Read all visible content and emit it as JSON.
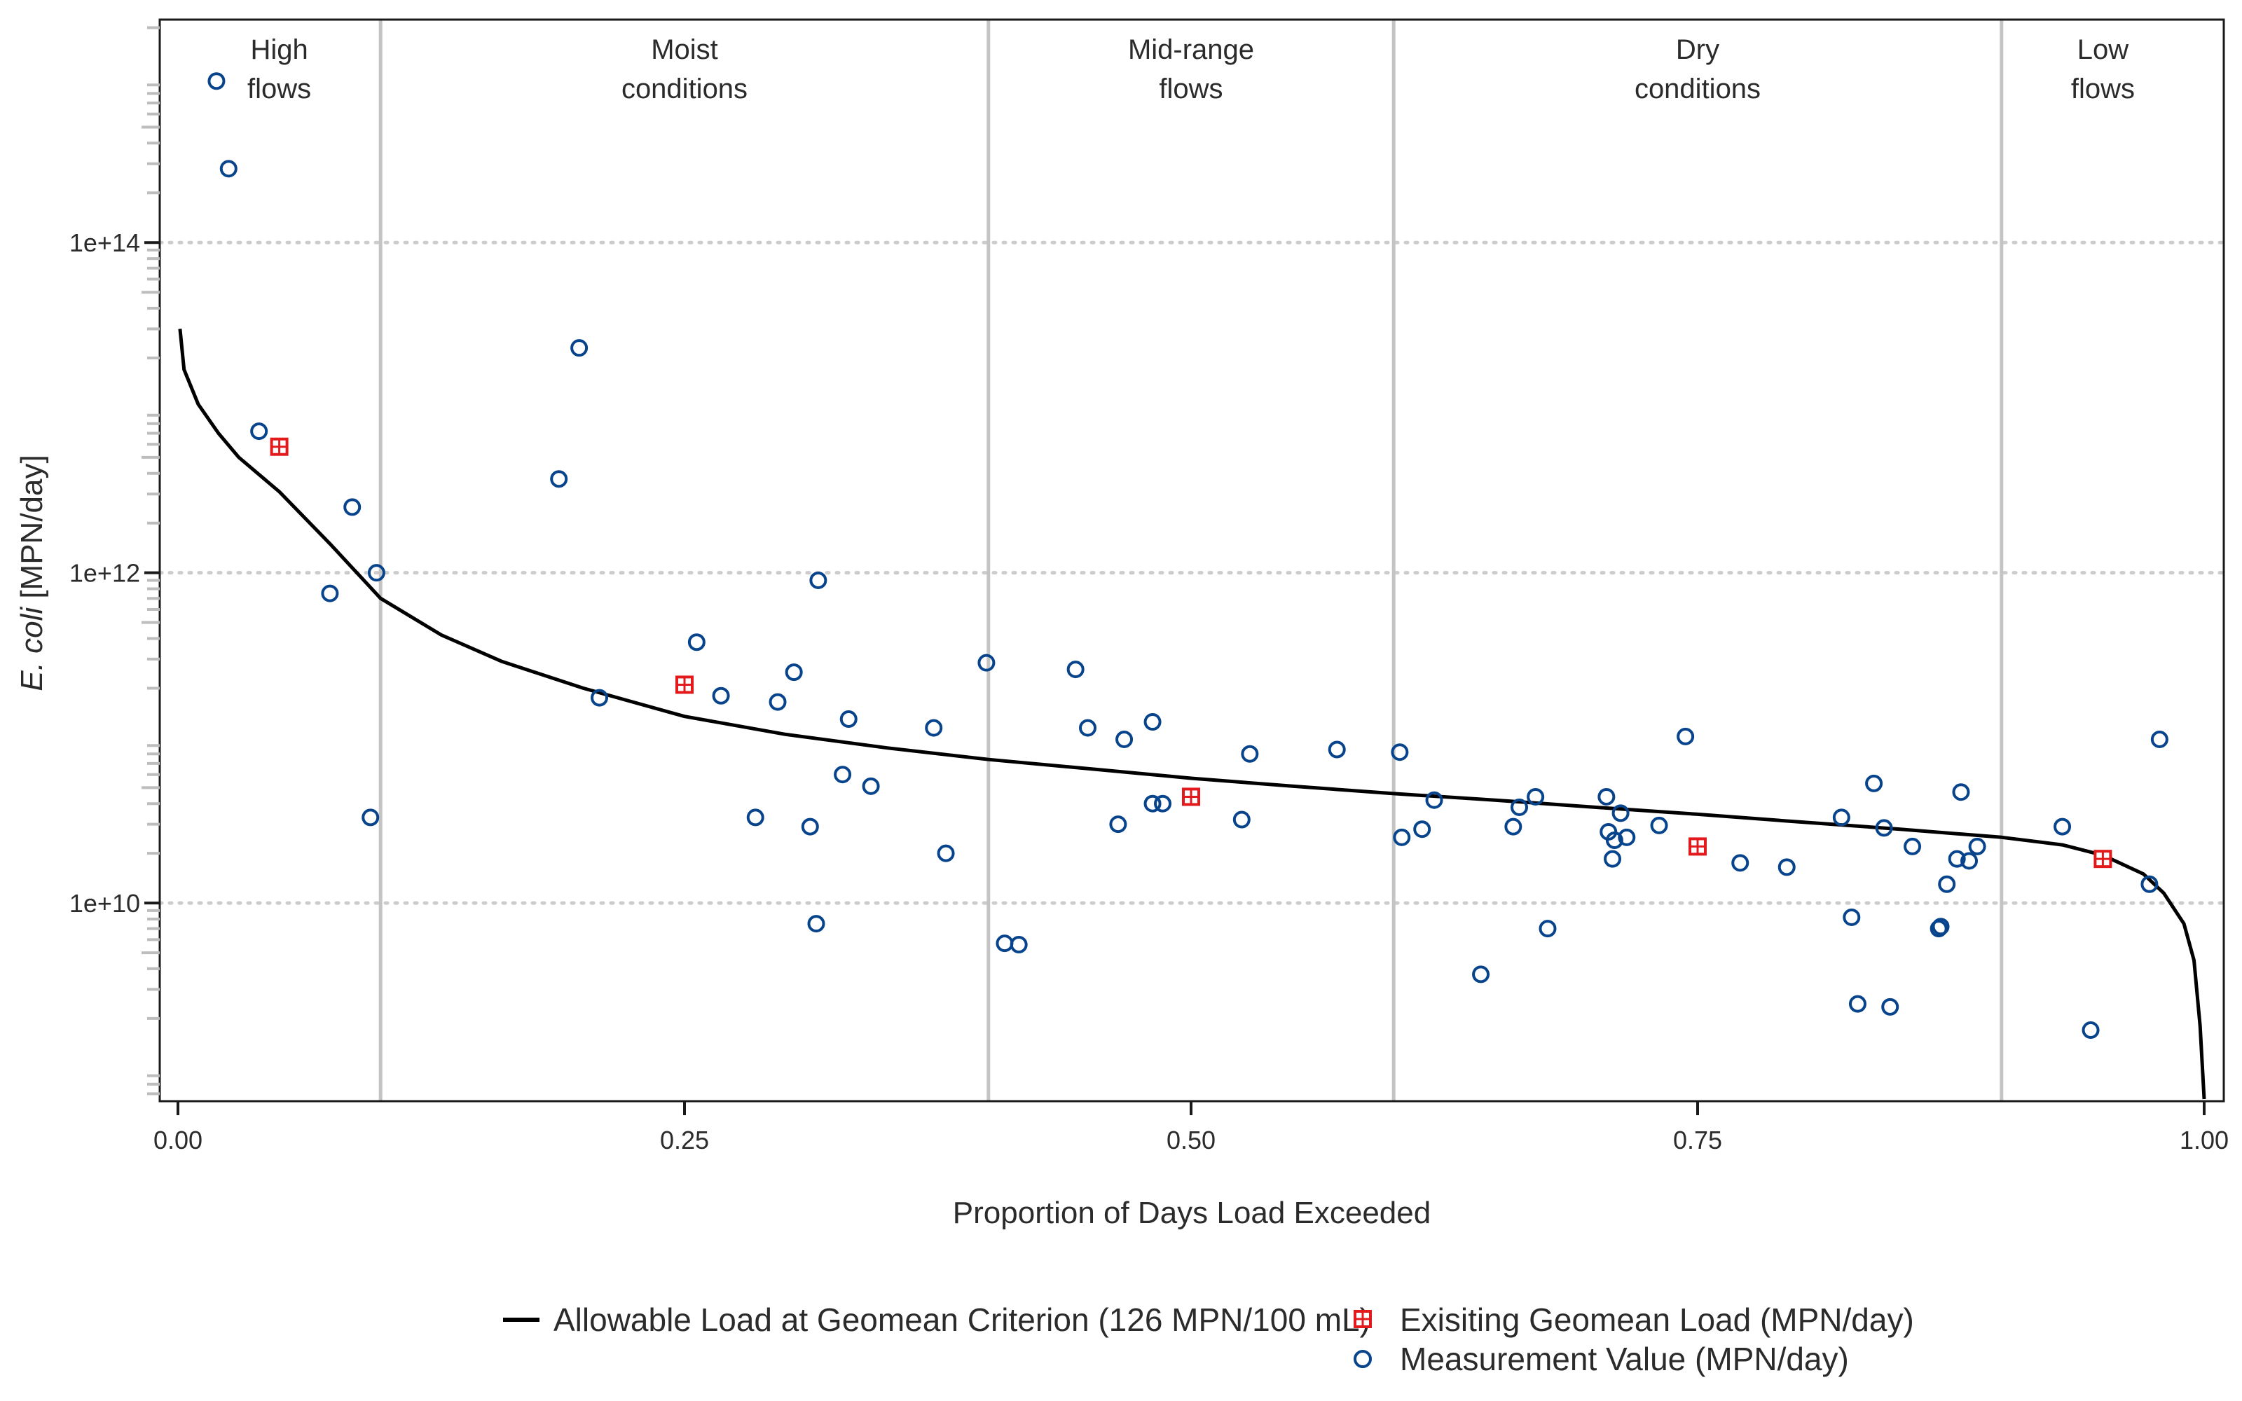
{
  "chart_data": {
    "type": "scatter",
    "title": "",
    "xlabel": "Proportion of Days Load Exceeded",
    "ylabel_italic": "E. coli",
    "ylabel_unit": " [MPN/day]",
    "xlim": [
      0,
      1
    ],
    "ylim_log10": [
      8.8,
      15.35
    ],
    "y_scale": "log",
    "x_ticks": [
      {
        "value": 0,
        "label": "0.00"
      },
      {
        "value": 0.25,
        "label": "0.25"
      },
      {
        "value": 0.5,
        "label": "0.50"
      },
      {
        "value": 0.75,
        "label": "0.75"
      },
      {
        "value": 1,
        "label": "1.00"
      }
    ],
    "y_ticks": [
      {
        "value": 10000000000.0,
        "label": "1e+10"
      },
      {
        "value": 1000000000000.0,
        "label": "1e+12"
      },
      {
        "value": 100000000000000.0,
        "label": "1e+14"
      }
    ],
    "y_grid": "dotted at major ticks",
    "flow_zone_boundaries": [
      0.1,
      0.4,
      0.6,
      0.9
    ],
    "flow_zones": [
      {
        "line1": "High",
        "line2": "flows",
        "center": 0.05
      },
      {
        "line1": "Moist",
        "line2": "conditions",
        "center": 0.25
      },
      {
        "line1": "Mid-range",
        "line2": "flows",
        "center": 0.5
      },
      {
        "line1": "Dry",
        "line2": "conditions",
        "center": 0.75
      },
      {
        "line1": "Low",
        "line2": "flows",
        "center": 0.95
      }
    ],
    "legend_position": "bottom",
    "series": [
      {
        "name": "Allowable Load at Geomean Criterion (126 MPN/100 mL)",
        "kind": "line",
        "color": "#000000",
        "points": [
          [
            0.001,
            30000000000000.0
          ],
          [
            0.003,
            17000000000000.0
          ],
          [
            0.01,
            10500000000000.0
          ],
          [
            0.02,
            7000000000000.0
          ],
          [
            0.03,
            5000000000000.0
          ],
          [
            0.05,
            3100000000000.0
          ],
          [
            0.075,
            1500000000000.0
          ],
          [
            0.1,
            700000000000.0
          ],
          [
            0.13,
            420000000000.0
          ],
          [
            0.16,
            290000000000.0
          ],
          [
            0.2,
            200000000000.0
          ],
          [
            0.25,
            135000000000.0
          ],
          [
            0.3,
            105000000000.0
          ],
          [
            0.35,
            87000000000.0
          ],
          [
            0.4,
            74000000000.0
          ],
          [
            0.45,
            65000000000.0
          ],
          [
            0.5,
            57000000000.0
          ],
          [
            0.55,
            51000000000.0
          ],
          [
            0.6,
            46000000000.0
          ],
          [
            0.65,
            42000000000.0
          ],
          [
            0.7,
            38000000000.0
          ],
          [
            0.75,
            34500000000.0
          ],
          [
            0.8,
            31000000000.0
          ],
          [
            0.85,
            28000000000.0
          ],
          [
            0.9,
            25000000000.0
          ],
          [
            0.93,
            22500000000.0
          ],
          [
            0.95,
            19500000000.0
          ],
          [
            0.97,
            15000000000.0
          ],
          [
            0.98,
            11500000000.0
          ],
          [
            0.99,
            7500000000.0
          ],
          [
            0.995,
            4500000000.0
          ],
          [
            0.998,
            1800000000.0
          ],
          [
            1.0,
            650000000.0
          ]
        ]
      },
      {
        "name": "Exisiting Geomean Load (MPN/day)",
        "kind": "marker-square",
        "color": "#e31a1c",
        "points": [
          [
            0.05,
            5800000000000.0
          ],
          [
            0.25,
            210000000000.0
          ],
          [
            0.5,
            44000000000.0
          ],
          [
            0.75,
            22000000000.0
          ],
          [
            0.95,
            18500000000.0
          ]
        ]
      },
      {
        "name": "Measurement Value (MPN/day)",
        "kind": "marker-circle",
        "color": "#08448c",
        "points": [
          [
            0.019,
            950000000000000.0
          ],
          [
            0.025,
            280000000000000.0
          ],
          [
            0.04,
            7200000000000.0
          ],
          [
            0.075,
            750000000000.0
          ],
          [
            0.086,
            2500000000000.0
          ],
          [
            0.095,
            33000000000.0
          ],
          [
            0.098,
            1000000000000.0
          ],
          [
            0.188,
            3700000000000.0
          ],
          [
            0.198,
            23000000000000.0
          ],
          [
            0.208,
            175000000000.0
          ],
          [
            0.256,
            380000000000.0
          ],
          [
            0.268,
            180000000000.0
          ],
          [
            0.285,
            33000000000.0
          ],
          [
            0.296,
            165000000000.0
          ],
          [
            0.304,
            250000000000.0
          ],
          [
            0.312,
            29000000000.0
          ],
          [
            0.315,
            7500000000.0
          ],
          [
            0.316,
            900000000000.0
          ],
          [
            0.328,
            60000000000.0
          ],
          [
            0.331,
            130000000000.0
          ],
          [
            0.342,
            51000000000.0
          ],
          [
            0.373,
            115000000000.0
          ],
          [
            0.379,
            20000000000.0
          ],
          [
            0.399,
            285000000000.0
          ],
          [
            0.408,
            5700000000.0
          ],
          [
            0.415,
            5600000000.0
          ],
          [
            0.443,
            260000000000.0
          ],
          [
            0.449,
            115000000000.0
          ],
          [
            0.464,
            30000000000.0
          ],
          [
            0.467,
            98000000000.0
          ],
          [
            0.481,
            125000000000.0
          ],
          [
            0.481,
            40000000000.0
          ],
          [
            0.486,
            40000000000.0
          ],
          [
            0.525,
            32000000000.0
          ],
          [
            0.529,
            80000000000.0
          ],
          [
            0.572,
            85000000000.0
          ],
          [
            0.603,
            82000000000.0
          ],
          [
            0.604,
            25000000000.0
          ],
          [
            0.614,
            28000000000.0
          ],
          [
            0.62,
            42000000000.0
          ],
          [
            0.643,
            3700000000.0
          ],
          [
            0.659,
            29000000000.0
          ],
          [
            0.662,
            38000000000.0
          ],
          [
            0.67,
            44000000000.0
          ],
          [
            0.676,
            7000000000.0
          ],
          [
            0.705,
            44000000000.0
          ],
          [
            0.706,
            27000000000.0
          ],
          [
            0.708,
            18500000000.0
          ],
          [
            0.709,
            24000000000.0
          ],
          [
            0.712,
            35000000000.0
          ],
          [
            0.715,
            25000000000.0
          ],
          [
            0.731,
            29500000000.0
          ],
          [
            0.744,
            102000000000.0
          ],
          [
            0.771,
            17500000000.0
          ],
          [
            0.794,
            16500000000.0
          ],
          [
            0.821,
            33000000000.0
          ],
          [
            0.826,
            8200000000.0
          ],
          [
            0.829,
            2450000000.0
          ],
          [
            0.837,
            53000000000.0
          ],
          [
            0.842,
            28500000000.0
          ],
          [
            0.845,
            2350000000.0
          ],
          [
            0.856,
            22000000000.0
          ],
          [
            0.869,
            7000000000.0
          ],
          [
            0.87,
            7200000000.0
          ],
          [
            0.873,
            13000000000.0
          ],
          [
            0.878,
            18500000000.0
          ],
          [
            0.88,
            47000000000.0
          ],
          [
            0.884,
            18000000000.0
          ],
          [
            0.888,
            22000000000.0
          ],
          [
            0.93,
            29000000000.0
          ],
          [
            0.944,
            1700000000.0
          ],
          [
            0.973,
            13000000000.0
          ],
          [
            0.978,
            98000000000.0
          ]
        ]
      }
    ]
  }
}
